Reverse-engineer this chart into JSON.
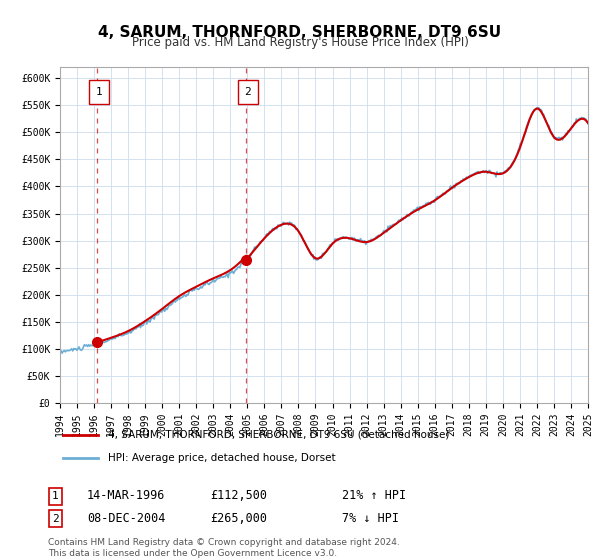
{
  "title": "4, SARUM, THORNFORD, SHERBORNE, DT9 6SU",
  "subtitle": "Price paid vs. HM Land Registry's House Price Index (HPI)",
  "legend_line1": "4, SARUM, THORNFORD, SHERBORNE, DT9 6SU (detached house)",
  "legend_line2": "HPI: Average price, detached house, Dorset",
  "footnote1": "Contains HM Land Registry data © Crown copyright and database right 2024.",
  "footnote2": "This data is licensed under the Open Government Licence v3.0.",
  "sale1_date": "14-MAR-1996",
  "sale1_price": 112500,
  "sale1_hpi": "21% ↑ HPI",
  "sale2_date": "08-DEC-2004",
  "sale2_price": 265000,
  "sale2_hpi": "7% ↓ HPI",
  "sale1_x": 1996.2,
  "sale2_x": 2004.93,
  "hpi_color": "#6baed6",
  "sale_color": "#cc0000",
  "ylim_min": 0,
  "ylim_max": 620000,
  "xlim_min": 1994,
  "xlim_max": 2025,
  "yticks": [
    0,
    50000,
    100000,
    150000,
    200000,
    250000,
    300000,
    350000,
    400000,
    450000,
    500000,
    550000,
    600000
  ],
  "xticks": [
    1994,
    1995,
    1996,
    1997,
    1998,
    1999,
    2000,
    2001,
    2002,
    2003,
    2004,
    2005,
    2006,
    2007,
    2008,
    2009,
    2010,
    2011,
    2012,
    2013,
    2014,
    2015,
    2016,
    2017,
    2018,
    2019,
    2020,
    2021,
    2022,
    2023,
    2024,
    2025
  ]
}
